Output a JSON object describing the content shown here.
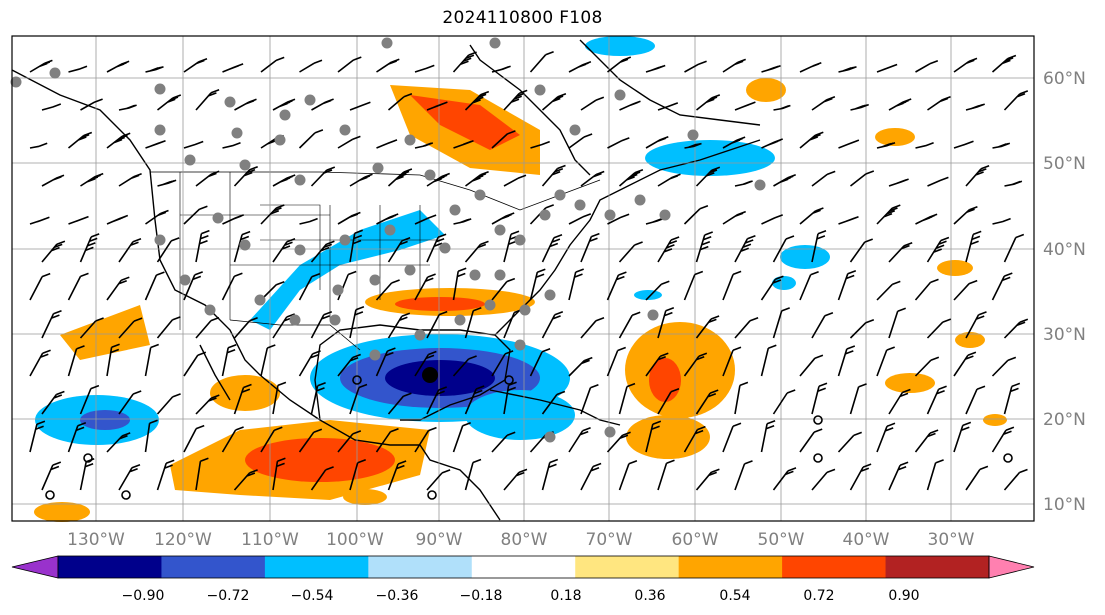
{
  "title": "2024110800 F108",
  "map": {
    "lon_labels": [
      "130°W",
      "120°W",
      "110°W",
      "100°W",
      "90°W",
      "80°W",
      "70°W",
      "60°W",
      "50°W",
      "40°W",
      "30°W"
    ],
    "lat_labels": [
      "60°N",
      "50°N",
      "40°N",
      "30°N",
      "20°N",
      "10°N"
    ],
    "grid": true,
    "shading_colors": {
      "neg_strong": "#00008b",
      "neg_mid": "#3355cc",
      "neg_weak": "#00bfff",
      "pos_weak": "#ffa500",
      "pos_mid": "#ff4500",
      "marker_gray": "#808080"
    }
  },
  "colorbar": {
    "ticks": [
      "−0.90",
      "−0.72",
      "−0.54",
      "−0.36",
      "−0.18",
      "0.18",
      "0.36",
      "0.54",
      "0.72",
      "0.90"
    ],
    "colors": [
      "#9932cc",
      "#00008b",
      "#3355cc",
      "#00bfff",
      "#b0e0fa",
      "#ffffff",
      "#ffe680",
      "#ffa500",
      "#ff4500",
      "#b22222",
      "#ff80b0"
    ],
    "extend": "both"
  }
}
